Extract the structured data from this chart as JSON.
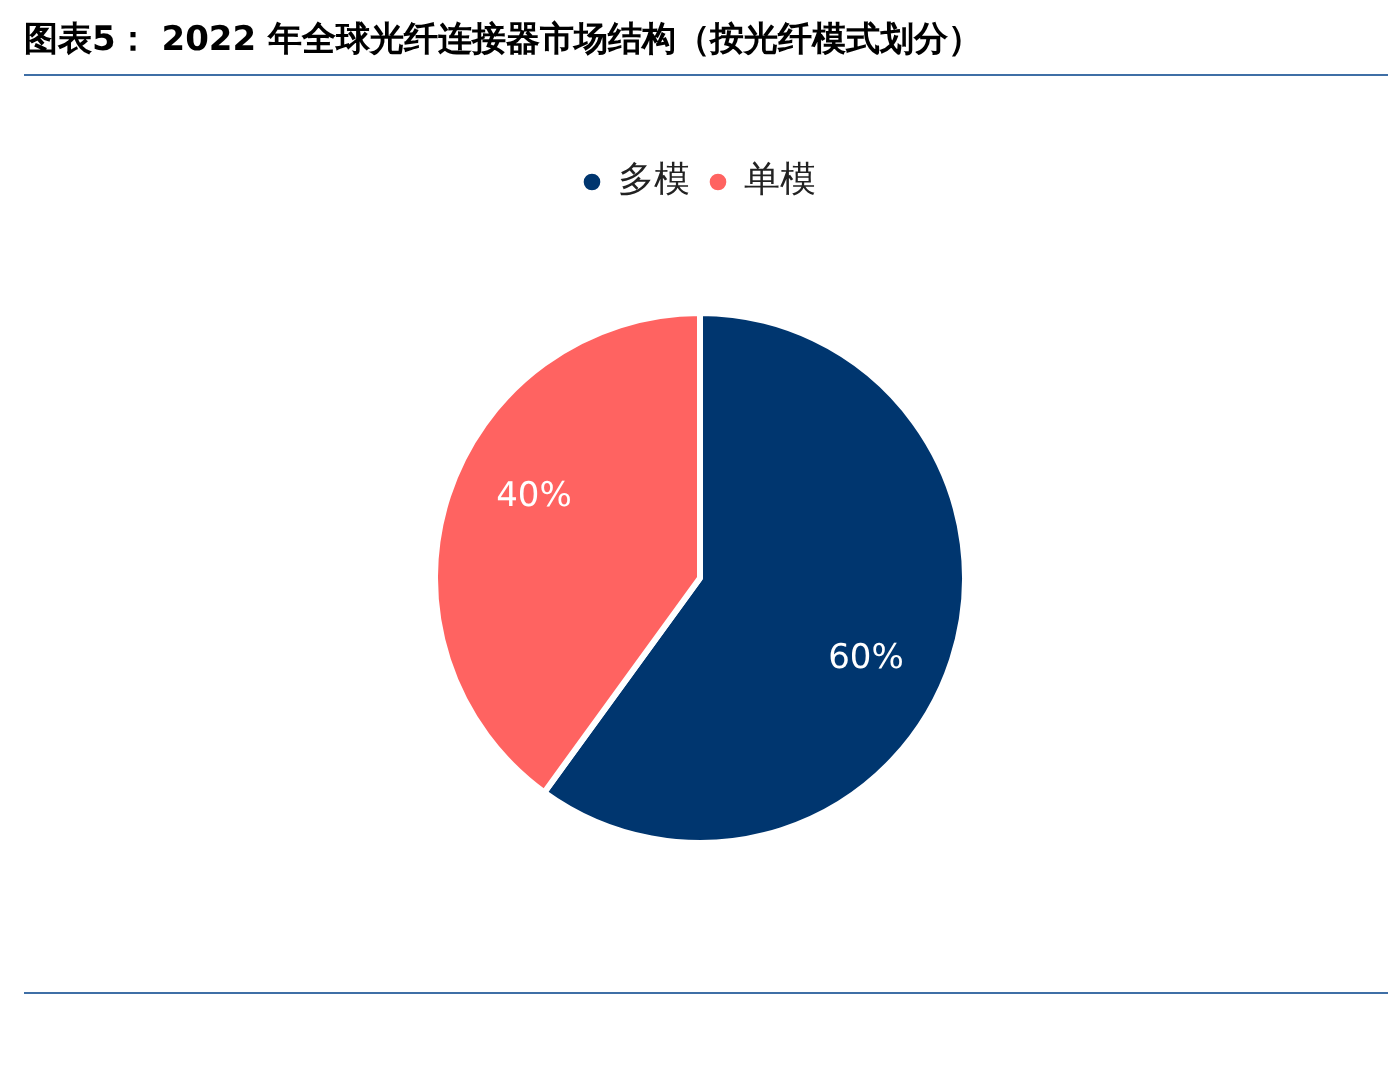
{
  "chart_data": {
    "type": "pie",
    "title": "图表5： 2022 年全球光纤连接器市场结构（按光纤模式划分）",
    "categories": [
      "多模",
      "单模"
    ],
    "values": [
      60,
      40
    ],
    "colors": [
      "#00366f",
      "#ff6361"
    ],
    "value_labels": [
      "60%",
      "40%"
    ],
    "legend": "top"
  }
}
